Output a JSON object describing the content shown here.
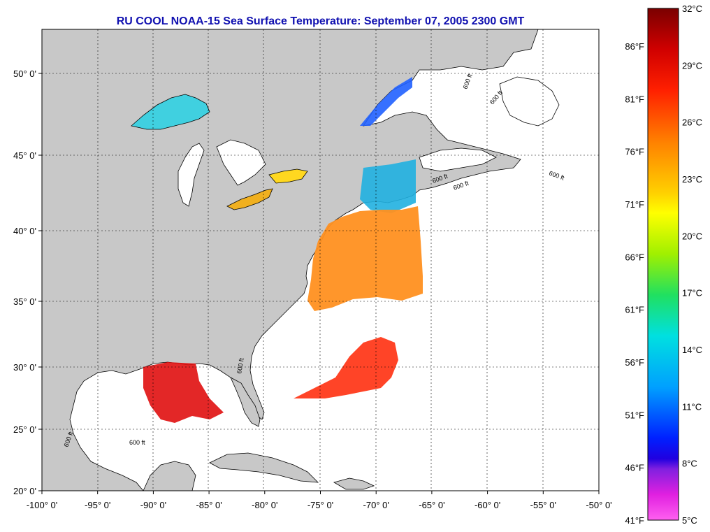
{
  "title": "RU COOL  NOAA-15  Sea Surface Temperature:  September 07, 2005 2300 GMT",
  "x_ticks": [
    {
      "label": "-100° 0'",
      "lon": -100
    },
    {
      "label": "-95° 0'",
      "lon": -95
    },
    {
      "label": "-90° 0'",
      "lon": -90
    },
    {
      "label": "-85° 0'",
      "lon": -85
    },
    {
      "label": "-80° 0'",
      "lon": -80
    },
    {
      "label": "-75° 0'",
      "lon": -75
    },
    {
      "label": "-70° 0'",
      "lon": -70
    },
    {
      "label": "-65° 0'",
      "lon": -65
    },
    {
      "label": "-60° 0'",
      "lon": -60
    },
    {
      "label": "-55° 0'",
      "lon": -55
    },
    {
      "label": "-50° 0'",
      "lon": -50
    }
  ],
  "y_ticks": [
    {
      "label": "50° 0'",
      "lat": 50
    },
    {
      "label": "45° 0'",
      "lat": 45
    },
    {
      "label": "40° 0'",
      "lat": 40
    },
    {
      "label": "35° 0'",
      "lat": 35
    },
    {
      "label": "30° 0'",
      "lat": 30
    },
    {
      "label": "25° 0'",
      "lat": 25
    },
    {
      "label": "20° 0'",
      "lat": 20
    }
  ],
  "colorbar": {
    "celsius_labels": [
      "32°C",
      "29°C",
      "26°C",
      "23°C",
      "20°C",
      "17°C",
      "14°C",
      "11°C",
      "8°C",
      "5°C"
    ],
    "fahrenheit_labels": [
      "86°F",
      "81°F",
      "76°F",
      "71°F",
      "66°F",
      "61°F",
      "56°F",
      "51°F",
      "46°F",
      "41°F"
    ],
    "colors": [
      "#8b0000",
      "#e00000",
      "#ff4000",
      "#ff8c00",
      "#ffd000",
      "#ffff00",
      "#a0f000",
      "#20e080",
      "#00e0e0",
      "#00a0ff",
      "#0040ff",
      "#0000ff",
      "#8020e0",
      "#ff00ff",
      "#ff60ff"
    ]
  },
  "contour_label": "600 ft",
  "colors": {
    "land": "#c8c8c8",
    "ocean": "#ffffff",
    "title": "#1010b0"
  }
}
